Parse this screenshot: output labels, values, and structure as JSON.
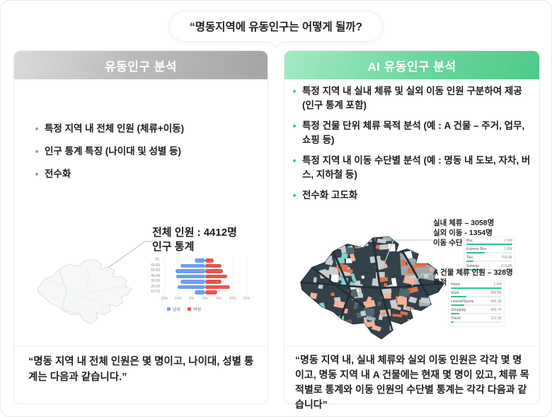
{
  "bubble": {
    "text": "“명동지역에 유동인구는 어떻게 될까?"
  },
  "left_panel": {
    "title": "유동인구 분석",
    "bullets": [
      "특정 지역 내 전체 인원 (체류+이동)",
      "인구 통계 특징 (나이대 및 성별 등)",
      "전수화"
    ],
    "callout_line1": "전체 인원 : 4412명",
    "callout_line2": "인구 통계",
    "quote": "“명동 지역 내 전체 인원은 몇 명이고, 나이대, 성별 통계는 다음과 같습니다.”"
  },
  "right_panel": {
    "title": "AI 유동인구 분석",
    "bullets": [
      "특정 지역 내 실내 체류 및 실외 이동 인원 구분하여 제공 (인구 통계 포함)",
      "특정 건물 단위 체류 목적 분석 (예 : A 건물 – 주거, 업무, 쇼핑 등)",
      "특정 지역 내 이동 수단별 분석 (예 : 명동 내 도보, 자차, 버스, 지하철 등)",
      "전수화 고도화"
    ],
    "callout1_line1": "실내 체류 – 3058명",
    "callout1_line2": "실외 이동 - 1354명",
    "callout1_line3": "이동 수단",
    "callout2_line1": "A 건물 체류 인원 – 328명",
    "callout2_line2": "목적",
    "quote": "“명동 지역 내, 실내 체류와 실외 이동 인원은 각각 몇 명이고, 명동 지역 내 A 건물에는 현재 몇 명이 있고, 체류 목적별로 통계와 이동 인원의 수단별 통계는 각각 다음과 같습니다”"
  },
  "colors": {
    "accent_green": "#4fca8a",
    "header_gray": "#b0b0b0",
    "male_blue": "#6d9ff0",
    "female_red": "#e8544e",
    "progress_green": "#27c689"
  },
  "chart_data": [
    {
      "type": "bar",
      "subtype": "population-pyramid",
      "title": "인구 통계",
      "categories": [
        "70-",
        "60-69",
        "50-59",
        "40-49",
        "30-39",
        "20-29",
        "10-19"
      ],
      "series": [
        {
          "name": "남성",
          "color": "#6d9ff0",
          "values": [
            4.0,
            9.0,
            10.8,
            10.6,
            9.0,
            10.0,
            4.0
          ]
        },
        {
          "name": "여성",
          "color": "#e8544e",
          "values": [
            3.0,
            6.0,
            6.5,
            8.0,
            6.0,
            9.0,
            4.5
          ]
        }
      ],
      "x_ticks": [
        "15%",
        "10%",
        "5%",
        "0%",
        "5%",
        "10%",
        "15%"
      ],
      "xlim": [
        -15,
        15
      ],
      "grid": true,
      "legend_position": "bottom"
    },
    {
      "type": "bar",
      "subtype": "progress-list",
      "title": "이동 수단",
      "categories": [
        "Bus",
        "Express Bus",
        "Taxi",
        "Subway"
      ],
      "values": [
        100,
        40,
        16,
        35
      ],
      "value_labels": [
        "2.5W",
        "1.9W",
        "756.4K",
        "616.8K"
      ]
    },
    {
      "type": "bar",
      "subtype": "progress-list",
      "title": "목적",
      "categories": [
        "Home",
        "Work",
        "Leisure/Sports",
        "Shopping",
        "Travel"
      ],
      "values": [
        100,
        30,
        27,
        17,
        6
      ],
      "value_labels": [
        "1.4W",
        "990.8K",
        "946.3K",
        "406.7K",
        "152.3K"
      ]
    }
  ]
}
